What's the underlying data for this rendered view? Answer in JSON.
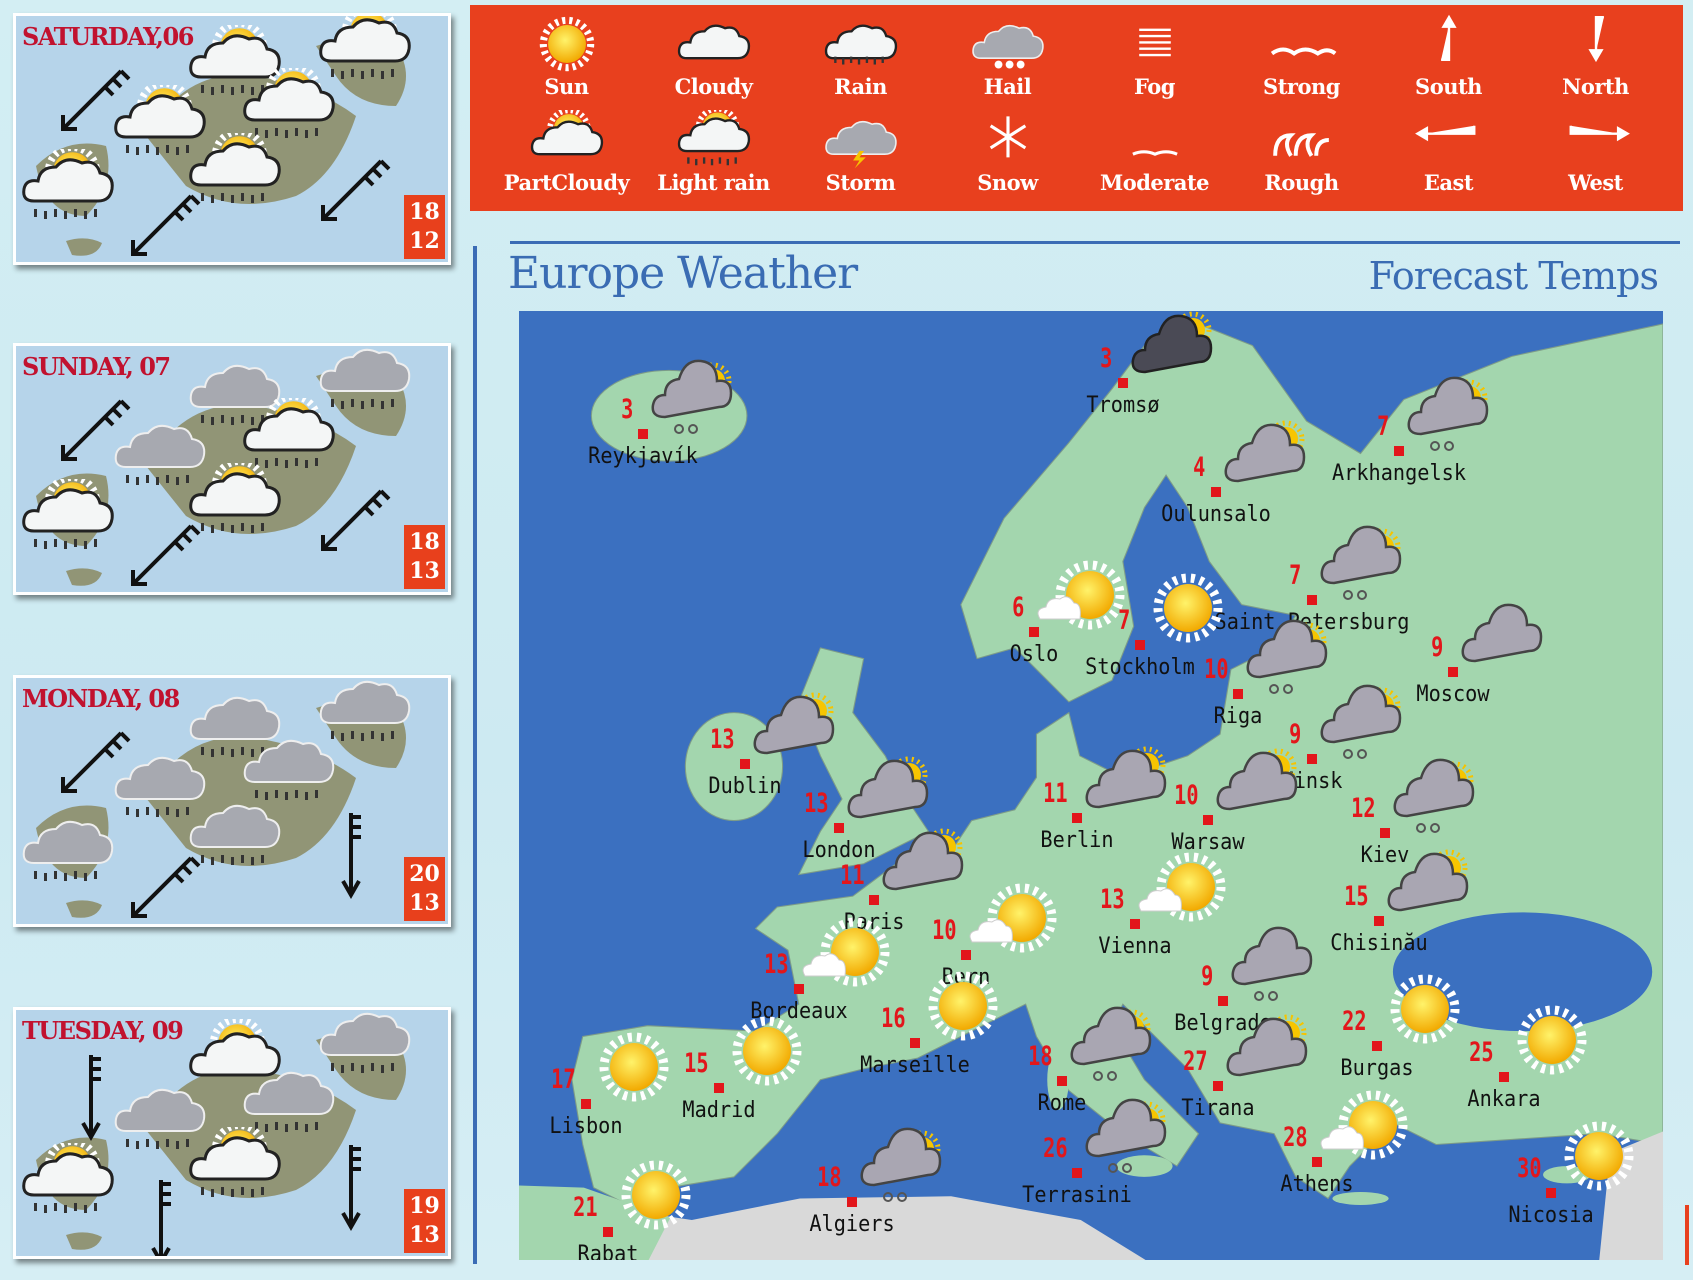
{
  "legend": {
    "items": [
      {
        "label": "Sun",
        "icon": "sun"
      },
      {
        "label": "Cloudy",
        "icon": "cloud-white"
      },
      {
        "label": "Rain",
        "icon": "rain"
      },
      {
        "label": "Hail",
        "icon": "hail"
      },
      {
        "label": "Fog",
        "icon": "fog"
      },
      {
        "label": "Strong",
        "icon": "wave-strong"
      },
      {
        "label": "South",
        "icon": "arrow-up"
      },
      {
        "label": "North",
        "icon": "arrow-down"
      },
      {
        "label": "PartCloudy",
        "icon": "part-cloudy"
      },
      {
        "label": "Light rain",
        "icon": "light-rain"
      },
      {
        "label": "Storm",
        "icon": "storm"
      },
      {
        "label": "Snow",
        "icon": "snow"
      },
      {
        "label": "Moderate",
        "icon": "wave-moderate"
      },
      {
        "label": "Rough",
        "icon": "wave-rough"
      },
      {
        "label": "East",
        "icon": "arrow-left"
      },
      {
        "label": "West",
        "icon": "arrow-right"
      }
    ]
  },
  "days": [
    {
      "label": "SATURDAY,06",
      "high": "18",
      "low": "12",
      "icons": [
        "light-rain",
        "light-rain",
        "light-rain",
        "light-rain",
        "light-rain",
        "light-rain"
      ],
      "wind": [
        "southwest",
        "southwest",
        "southwest"
      ]
    },
    {
      "label": "SUNDAY, 07",
      "high": "18",
      "low": "13",
      "icons": [
        "rain-grey",
        "rain-grey",
        "rain-grey",
        "light-rain",
        "light-rain",
        "light-rain"
      ],
      "wind": [
        "southwest",
        "southwest",
        "southwest"
      ]
    },
    {
      "label": "MONDAY, 08",
      "high": "20",
      "low": "13",
      "icons": [
        "rain-grey",
        "rain-grey",
        "rain-grey",
        "rain-grey",
        "rain-grey",
        "rain-grey"
      ],
      "wind": [
        "southwest",
        "southwest",
        "south"
      ]
    },
    {
      "label": "TUESDAY, 09",
      "high": "19",
      "low": "13",
      "icons": [
        "part-cloudy",
        "rain-grey",
        "rain-grey",
        "rain-grey",
        "light-rain",
        "light-rain"
      ],
      "wind": [
        "south",
        "south",
        "south"
      ]
    }
  ],
  "header": {
    "title": "Europe Weather",
    "subtitle": "Forecast Temps"
  },
  "colors": {
    "legend_bg": "#e8401e",
    "sea": "#3b70c0",
    "land": "#a3d6ae",
    "temp": "#e2161b",
    "day_title": "#c1122f",
    "accent": "#3a6cb3"
  },
  "cities": [
    {
      "name": "Reykjavík",
      "temp": "3",
      "icon": "cloud-rain-sun"
    },
    {
      "name": "Tromsø",
      "temp": "3",
      "icon": "dark-cloud-sun"
    },
    {
      "name": "Arkhangelsk",
      "temp": "7",
      "icon": "cloud-rain-sun"
    },
    {
      "name": "Oulunsalo",
      "temp": "4",
      "icon": "cloud-sun"
    },
    {
      "name": "Saint Petersburg",
      "temp": "7",
      "icon": "cloud-rain-sun"
    },
    {
      "name": "Oslo",
      "temp": "6",
      "icon": "sun-cloud"
    },
    {
      "name": "Stockholm",
      "temp": "7",
      "icon": "sun"
    },
    {
      "name": "Moscow",
      "temp": "9",
      "icon": "cloud"
    },
    {
      "name": "Riga",
      "temp": "10",
      "icon": "cloud-rain-sun"
    },
    {
      "name": "Minsk",
      "temp": "9",
      "icon": "cloud-rain-sun"
    },
    {
      "name": "Dublin",
      "temp": "13",
      "icon": "cloud-sun"
    },
    {
      "name": "London",
      "temp": "13",
      "icon": "cloud-sun"
    },
    {
      "name": "Berlin",
      "temp": "11",
      "icon": "cloud-sun"
    },
    {
      "name": "Warsaw",
      "temp": "10",
      "icon": "cloud-sun"
    },
    {
      "name": "Kiev",
      "temp": "12",
      "icon": "cloud-rain-sun"
    },
    {
      "name": "Paris",
      "temp": "11",
      "icon": "cloud-sun"
    },
    {
      "name": "Vienna",
      "temp": "13",
      "icon": "sun-cloud"
    },
    {
      "name": "Chisinău",
      "temp": "15",
      "icon": "cloud-sun"
    },
    {
      "name": "Bern",
      "temp": "10",
      "icon": "sun-cloud"
    },
    {
      "name": "Bordeaux",
      "temp": "13",
      "icon": "sun-cloud"
    },
    {
      "name": "Belgrade",
      "temp": "9",
      "icon": "cloud-rain"
    },
    {
      "name": "Marseille",
      "temp": "16",
      "icon": "sun"
    },
    {
      "name": "Burgas",
      "temp": "22",
      "icon": "sun"
    },
    {
      "name": "Ankara",
      "temp": "25",
      "icon": "sun"
    },
    {
      "name": "Rome",
      "temp": "18",
      "icon": "cloud-rain-sun"
    },
    {
      "name": "Tirana",
      "temp": "27",
      "icon": "cloud-sun"
    },
    {
      "name": "Madrid",
      "temp": "15",
      "icon": "sun"
    },
    {
      "name": "Lisbon",
      "temp": "17",
      "icon": "sun"
    },
    {
      "name": "Terrasini",
      "temp": "26",
      "icon": "cloud-rain-sun"
    },
    {
      "name": "Athens",
      "temp": "28",
      "icon": "sun-cloud"
    },
    {
      "name": "Nicosia",
      "temp": "30",
      "icon": "sun"
    },
    {
      "name": "Algiers",
      "temp": "18",
      "icon": "cloud-rain-sun"
    },
    {
      "name": "Rabat",
      "temp": "21",
      "icon": "sun"
    }
  ]
}
